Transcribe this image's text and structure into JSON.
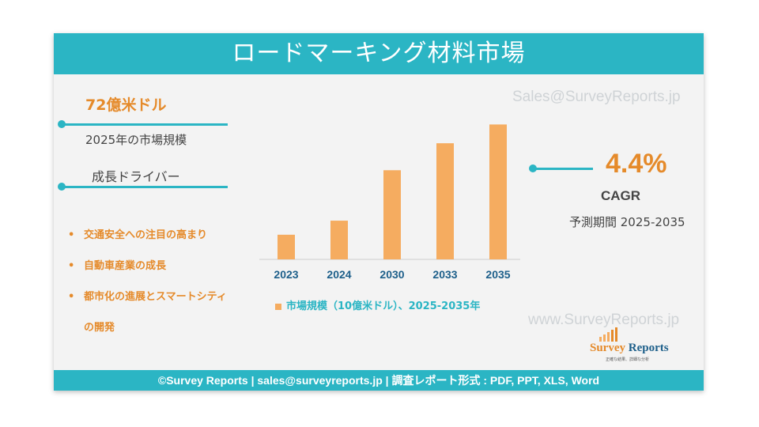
{
  "title": "ロードマーキング材料市場",
  "watermarks": {
    "top": "Sales@SurveyReports.jp",
    "bottom": "www.SurveyReports.jp"
  },
  "left_panel": {
    "market_value": "72億米ドル",
    "market_value_caption": "2025年の市場規模",
    "drivers_heading": "成長ドライバー",
    "drivers": [
      "交通安全への注目の高まり",
      "自動車産業の成長",
      "都市化の進展とスマートシティ",
      "の開発"
    ]
  },
  "right_panel": {
    "cagr_value": "4.4%",
    "cagr_label": "CAGR",
    "forecast_period": "予測期間 2025-2035"
  },
  "footer": "©Survey Reports | sales@surveyreports.jp |  調査レポート形式 : PDF, PPT, XLS, Word",
  "logo": {
    "name_part1": "Survey",
    "name_part2": " Reports",
    "tagline": "正確な結果、詳細な分析"
  },
  "colors": {
    "teal": "#2bb5c4",
    "orange": "#e58a2a",
    "bar": "#f5ac60"
  },
  "chart_data": {
    "type": "bar",
    "categories": [
      "2023",
      "2024",
      "2030",
      "2033",
      "2035"
    ],
    "series": [
      {
        "name": "市場規模（10億米ドル）、2025-2035年",
        "values": [
          2.1,
          3.3,
          7.6,
          9.9,
          11.5
        ]
      }
    ],
    "ylim": [
      0,
      12
    ],
    "grid": false,
    "legend": "bottom"
  }
}
